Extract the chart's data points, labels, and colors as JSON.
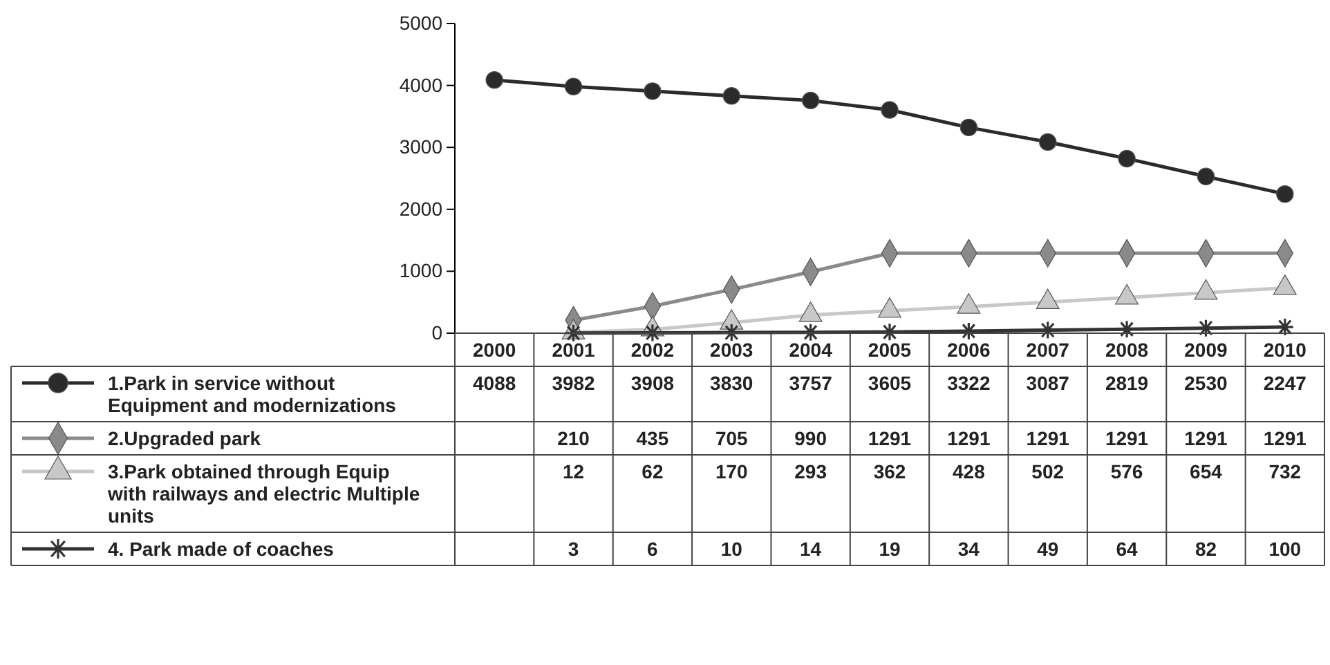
{
  "chart_data": {
    "type": "line",
    "categories": [
      "2000",
      "2001",
      "2002",
      "2003",
      "2004",
      "2005",
      "2006",
      "2007",
      "2008",
      "2009",
      "2010"
    ],
    "ylim": [
      0,
      5000
    ],
    "yticks": [
      0,
      1000,
      2000,
      3000,
      4000,
      5000
    ],
    "grid": false,
    "legend": "bottom",
    "data_labels": true,
    "series": [
      {
        "name": "1.Park in service without Equipment and modernizations",
        "color": "#2b2b2b",
        "marker": "circle",
        "values": [
          4088,
          3982,
          3908,
          3830,
          3757,
          3605,
          3322,
          3087,
          2819,
          2530,
          2247
        ]
      },
      {
        "name": "2.Upgraded park",
        "color": "#8a8a8a",
        "marker": "diamond",
        "values": [
          null,
          210,
          435,
          705,
          990,
          1291,
          1291,
          1291,
          1291,
          1291,
          1291
        ]
      },
      {
        "name": "3.Park obtained through Equip with railways and electric Multiple units",
        "color": "#c8c8c8",
        "marker": "triangle",
        "values": [
          null,
          12,
          62,
          170,
          293,
          362,
          428,
          502,
          576,
          654,
          732
        ]
      },
      {
        "name": "4. Park made of coaches",
        "color": "#333333",
        "marker": "cross",
        "values": [
          null,
          3,
          6,
          10,
          14,
          19,
          34,
          49,
          64,
          82,
          100
        ]
      }
    ]
  }
}
